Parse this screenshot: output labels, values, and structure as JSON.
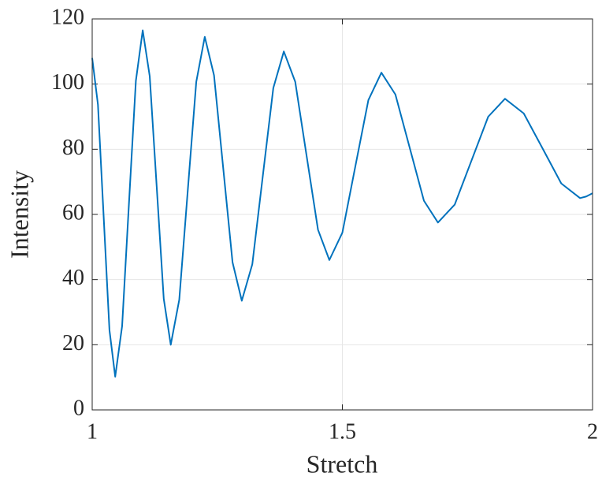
{
  "chart_data": {
    "type": "line",
    "x_label": "Stretch",
    "y_label": "Intensity",
    "x": [
      1,
      1.0115,
      1.023,
      1.0345,
      1.046,
      1.0598,
      1.0735,
      1.0873,
      1.101,
      1.115,
      1.129,
      1.143,
      1.157,
      1.174,
      1.191,
      1.208,
      1.225,
      1.2435,
      1.262,
      1.2805,
      1.299,
      1.32,
      1.341,
      1.362,
      1.383,
      1.4058,
      1.4285,
      1.4513,
      1.474,
      1.5,
      1.526,
      1.552,
      1.578,
      1.606,
      1.6345,
      1.663,
      1.691,
      1.7245,
      1.758,
      1.7915,
      1.825,
      1.8625,
      1.9,
      1.9375,
      1.975,
      1.9875,
      2
    ],
    "series": [
      {
        "color": "#0072bd",
        "values": [
          108,
          93.7,
          59.1,
          24.5,
          10.2,
          25.7,
          63.4,
          101.0,
          116.5,
          102.4,
          68.3,
          34.1,
          20,
          33.8,
          67.3,
          100.7,
          114.5,
          102.7,
          74,
          45.3,
          33.5,
          44.7,
          71.8,
          98.8,
          110,
          100.7,
          78,
          55.3,
          46,
          54.4,
          74.8,
          95.1,
          103.5,
          96.8,
          80.5,
          64.2,
          57.5,
          63.0,
          76.5,
          90.0,
          95.5,
          91.0,
          80.3,
          69.5,
          65,
          65.5,
          66.5
        ]
      }
    ],
    "xlim": [
      1,
      2
    ],
    "xticks": [
      1,
      1.5,
      2
    ],
    "ylim": [
      0,
      120
    ],
    "yticks": [
      0,
      20,
      40,
      60,
      80,
      100,
      120
    ],
    "grid": true
  }
}
